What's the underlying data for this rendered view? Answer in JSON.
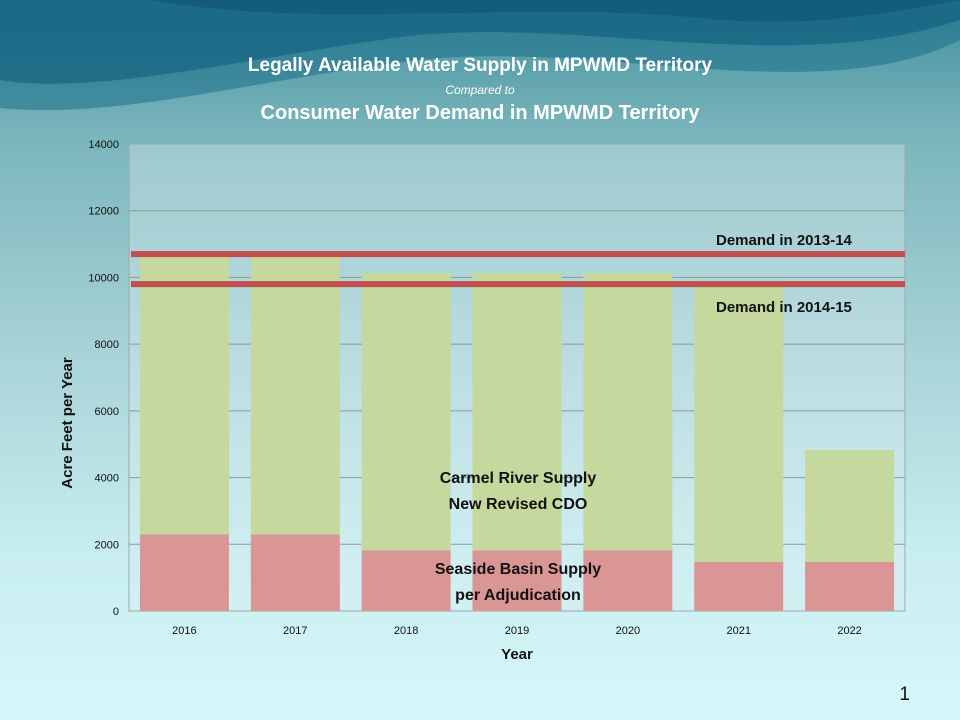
{
  "slide": {
    "title_line1": "Legally Available Water Supply in MPWMD Territory",
    "title_line2": "Compared to",
    "title_line3": "Consumer Water Demand in MPWMD Territory",
    "page_number": "1"
  },
  "colors": {
    "supply_green": "#c5d89d",
    "basin_red": "#d99694",
    "demand_line": "#c0504d",
    "plot_bg": "#dceef0"
  },
  "chart_data": {
    "type": "bar",
    "stacked": true,
    "categories": [
      "2016",
      "2017",
      "2018",
      "2019",
      "2020",
      "2021",
      "2022"
    ],
    "series": [
      {
        "values": [
          2300,
          2300,
          1820,
          1820,
          1820,
          1470,
          1470
        ]
      },
      {
        "values": [
          8340,
          8340,
          8310,
          8310,
          8310,
          8240,
          3360
        ]
      }
    ],
    "reference_lines": [
      {
        "label": "Demand in 2013-14",
        "value": 10700
      },
      {
        "label": "Demand in 2014-15",
        "value": 9800
      }
    ],
    "annotations": {
      "carmel_line1": "Carmel River Supply",
      "carmel_line2": "New Revised CDO",
      "seaside_line1": "Seaside Basin Supply",
      "seaside_line2": "per Adjudication"
    },
    "xlabel": "Year",
    "ylabel": "Acre Feet per Year",
    "ylim": [
      0,
      14000
    ],
    "yticks": [
      0,
      2000,
      4000,
      6000,
      8000,
      10000,
      12000,
      14000
    ],
    "grid": true
  }
}
